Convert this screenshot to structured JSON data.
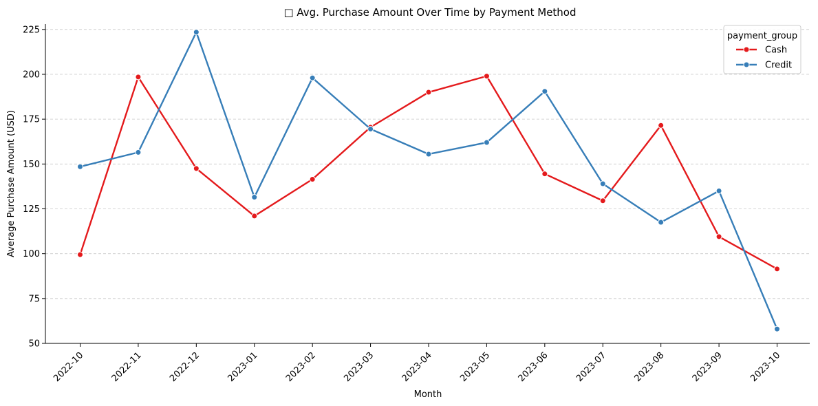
{
  "chart_data": {
    "type": "line",
    "title": "□ Avg. Purchase Amount Over Time by Payment Method",
    "xlabel": "Month",
    "ylabel": "Average Purchase Amount (USD)",
    "categories": [
      "2022-10",
      "2022-11",
      "2022-12",
      "2023-01",
      "2023-02",
      "2023-03",
      "2023-04",
      "2023-05",
      "2023-06",
      "2023-07",
      "2023-08",
      "2023-09",
      "2023-10"
    ],
    "ylim": [
      50,
      228
    ],
    "yticks": [
      50,
      75,
      100,
      125,
      150,
      175,
      200,
      225
    ],
    "grid": "horizontal dashed",
    "legend": {
      "title": "payment_group",
      "placement": "top-right"
    },
    "series": [
      {
        "name": "Cash",
        "color": "#e41a1c",
        "values": [
          99.5,
          198.5,
          147.5,
          121.0,
          141.5,
          170.5,
          190.0,
          199.0,
          144.5,
          129.5,
          171.5,
          109.5,
          91.5
        ]
      },
      {
        "name": "Credit",
        "color": "#377eb8",
        "values": [
          148.5,
          156.5,
          223.5,
          131.5,
          198.0,
          169.5,
          155.5,
          162.0,
          190.5,
          139.0,
          117.5,
          135.0,
          58.0
        ]
      }
    ]
  }
}
